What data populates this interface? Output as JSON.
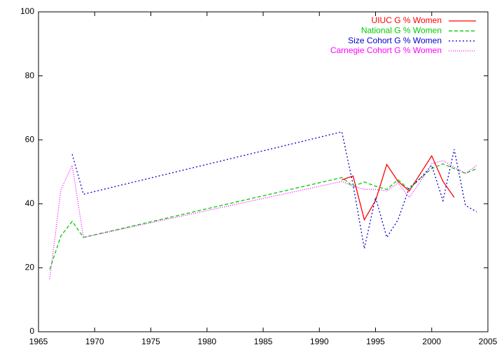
{
  "chart_data": {
    "type": "line",
    "x": [
      1966,
      1967,
      1968,
      1969,
      1992,
      1993,
      1994,
      1995,
      1996,
      1997,
      1998,
      1999,
      2000,
      2001,
      2002,
      2003,
      2004
    ],
    "series": [
      {
        "name": "UIUC G % Women",
        "color": "#ff0000",
        "values": [
          null,
          null,
          null,
          null,
          47.5,
          48.7,
          35,
          41,
          52.3,
          47,
          44,
          49.5,
          55,
          47,
          42,
          null,
          null
        ]
      },
      {
        "name": "National G % Women",
        "color": "#00cc00",
        "values": [
          19.5,
          30,
          34.5,
          29.5,
          48.2,
          45.5,
          46.8,
          45.5,
          44.5,
          47.5,
          44.5,
          48,
          51,
          52.5,
          51,
          49.5,
          51
        ]
      },
      {
        "name": "Size Cohort G % Women",
        "color": "#0000cc",
        "values": [
          null,
          null,
          55.5,
          43,
          62.5,
          46,
          26,
          42,
          29.5,
          35,
          45,
          48,
          52,
          41,
          57,
          39.5,
          37.5
        ]
      },
      {
        "name": "Carnegie Cohort G % Women",
        "color": "#ff00ff",
        "values": [
          16.5,
          44.5,
          52,
          29.5,
          47,
          45.5,
          44.5,
          44.5,
          44,
          46.5,
          42,
          47,
          52.5,
          53.5,
          51.5,
          49.5,
          52
        ]
      }
    ],
    "xlim": [
      1965,
      2005
    ],
    "xticks": [
      1965,
      1970,
      1975,
      1980,
      1985,
      1990,
      1995,
      2000,
      2005
    ],
    "ylim": [
      0,
      100
    ],
    "yticks": [
      0,
      20,
      40,
      60,
      80,
      100
    ],
    "legend": "top-right"
  }
}
